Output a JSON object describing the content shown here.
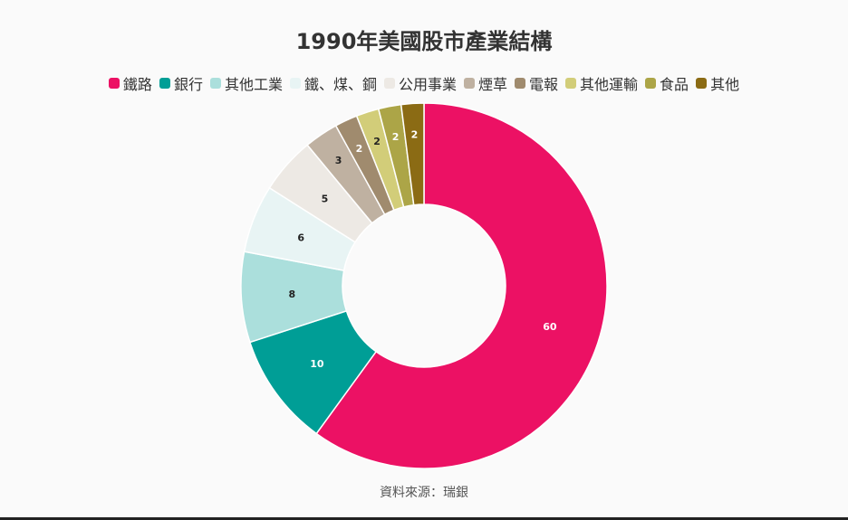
{
  "chart_data": {
    "type": "pie",
    "style": "donut",
    "title": "1990年美國股市產業結構",
    "source": "資料來源：瑞銀",
    "legend_position": "top",
    "categories": [
      "鐵路",
      "銀行",
      "其他工業",
      "鐵、煤、鋼",
      "公用事業",
      "煙草",
      "電報",
      "其他運輸",
      "食品",
      "其他"
    ],
    "values": [
      60,
      10,
      8,
      6,
      5,
      3,
      2,
      2,
      2,
      2
    ],
    "colors": [
      "#ec1164",
      "#009e96",
      "#abdfdc",
      "#e8f4f4",
      "#ede9e4",
      "#bfb1a1",
      "#a08b6e",
      "#d2cd79",
      "#aca547",
      "#8b6b14"
    ],
    "label_colors": [
      "#ffffff",
      "#ffffff",
      "#222222",
      "#222222",
      "#222222",
      "#222222",
      "#ffffff",
      "#222222",
      "#ffffff",
      "#ffffff"
    ]
  }
}
